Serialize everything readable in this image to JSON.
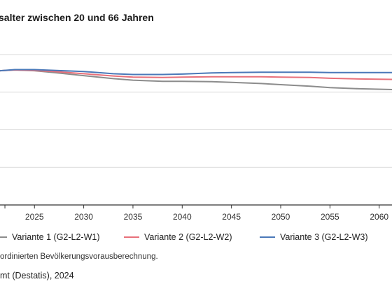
{
  "title": "salter zwischen 20 und 66 Jahren",
  "note": "ordinierten Bevölkerungsvorausberechnung.",
  "source": "mt (Destatis), 2024",
  "chart_data": {
    "type": "line",
    "x_ticks": [
      "2025",
      "2030",
      "2035",
      "2040",
      "2045",
      "2050",
      "2055",
      "2060"
    ],
    "xlim": [
      2021.5,
      2061.3
    ],
    "ylim": [
      0,
      4
    ],
    "grid": true,
    "series": [
      {
        "name": "Variante 1 (G2-L2-W1)",
        "color": "#8c8c8c",
        "x": [
          2021.5,
          2023,
          2025,
          2027,
          2030,
          2033,
          2035,
          2038,
          2040,
          2043,
          2045,
          2048,
          2050,
          2053,
          2055,
          2058,
          2061.3
        ],
        "values": [
          3.57,
          3.59,
          3.57,
          3.52,
          3.44,
          3.36,
          3.32,
          3.29,
          3.29,
          3.28,
          3.26,
          3.23,
          3.2,
          3.16,
          3.12,
          3.09,
          3.07
        ]
      },
      {
        "name": "Variante 2 (G2-L2-W2)",
        "color": "#e8707a",
        "x": [
          2021.5,
          2023,
          2025,
          2027,
          2030,
          2033,
          2035,
          2038,
          2040,
          2043,
          2045,
          2048,
          2050,
          2053,
          2055,
          2058,
          2061.3
        ],
        "values": [
          3.57,
          3.59,
          3.58,
          3.55,
          3.49,
          3.43,
          3.4,
          3.39,
          3.4,
          3.41,
          3.41,
          3.41,
          3.4,
          3.39,
          3.37,
          3.35,
          3.34
        ]
      },
      {
        "name": "Variante 3 (G2-L2-W3)",
        "color": "#4a78b8",
        "x": [
          2021.5,
          2023,
          2025,
          2027,
          2030,
          2033,
          2035,
          2038,
          2040,
          2043,
          2045,
          2048,
          2050,
          2053,
          2055,
          2058,
          2061.3
        ],
        "values": [
          3.57,
          3.6,
          3.6,
          3.58,
          3.55,
          3.49,
          3.47,
          3.47,
          3.48,
          3.51,
          3.52,
          3.53,
          3.53,
          3.53,
          3.52,
          3.52,
          3.52
        ]
      }
    ]
  },
  "colors": {
    "grid": "#dadada",
    "axis": "#333333"
  }
}
